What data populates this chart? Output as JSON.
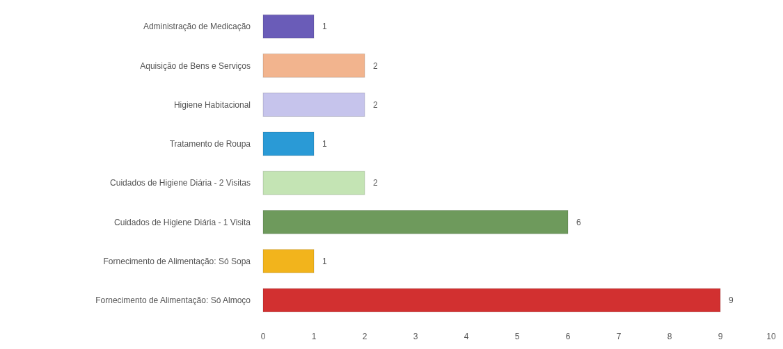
{
  "chart_data": {
    "type": "bar",
    "orientation": "horizontal",
    "categories": [
      "Administração de Medicação",
      "Aquisição de Bens e Serviços",
      "Higiene Habitacional",
      "Tratamento de Roupa",
      "Cuidados de Higiene Diária - 2 Visitas",
      "Cuidados de Higiene Diária - 1 Visita",
      "Fornecimento de Alimentação: Só Sopa",
      "Fornecimento de Alimentação: Só Almoço"
    ],
    "values": [
      1,
      2,
      2,
      1,
      2,
      6,
      1,
      9
    ],
    "colors": [
      "#6a5cb8",
      "#f2b48e",
      "#c6c4ec",
      "#2a9ad6",
      "#c4e4b4",
      "#6e9a5c",
      "#f2b41c",
      "#d23030"
    ],
    "xlim": [
      0,
      10
    ],
    "xticks": [
      0,
      1,
      2,
      3,
      4,
      5,
      6,
      7,
      8,
      9,
      10
    ],
    "data_labels": true
  }
}
